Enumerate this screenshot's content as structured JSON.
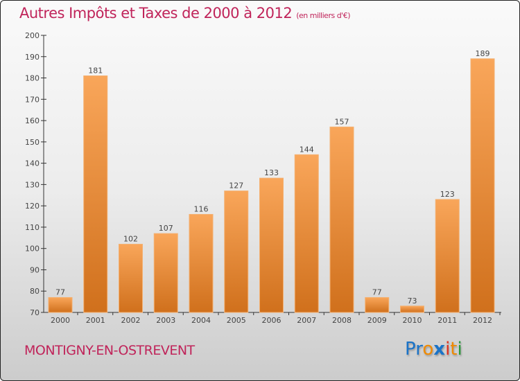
{
  "chart_data": {
    "type": "bar",
    "title": "Autres Impôts et Taxes de 2000 à 2012",
    "unit": "(en milliers d'€)",
    "categories": [
      "2000",
      "2001",
      "2002",
      "2003",
      "2004",
      "2005",
      "2006",
      "2007",
      "2008",
      "2009",
      "2010",
      "2011",
      "2012"
    ],
    "values": [
      77,
      181,
      102,
      107,
      116,
      127,
      133,
      144,
      157,
      77,
      73,
      123,
      189
    ],
    "ylim": [
      70,
      200
    ],
    "yticks": [
      70,
      80,
      90,
      100,
      110,
      120,
      130,
      140,
      150,
      160,
      170,
      180,
      190,
      200
    ],
    "xlabel": "",
    "ylabel": "",
    "bar_color": "#f0923a"
  },
  "location": "MONTIGNY-EN-OSTREVENT",
  "logo": {
    "letters": [
      "P",
      "r",
      "o",
      "x",
      "i",
      "t",
      "i"
    ],
    "colors": [
      "#1a73c8",
      "#1a73c8",
      "#f08a00",
      "#1a73c8",
      "#e0301e",
      "#f08a00",
      "#2a9a3a"
    ]
  }
}
